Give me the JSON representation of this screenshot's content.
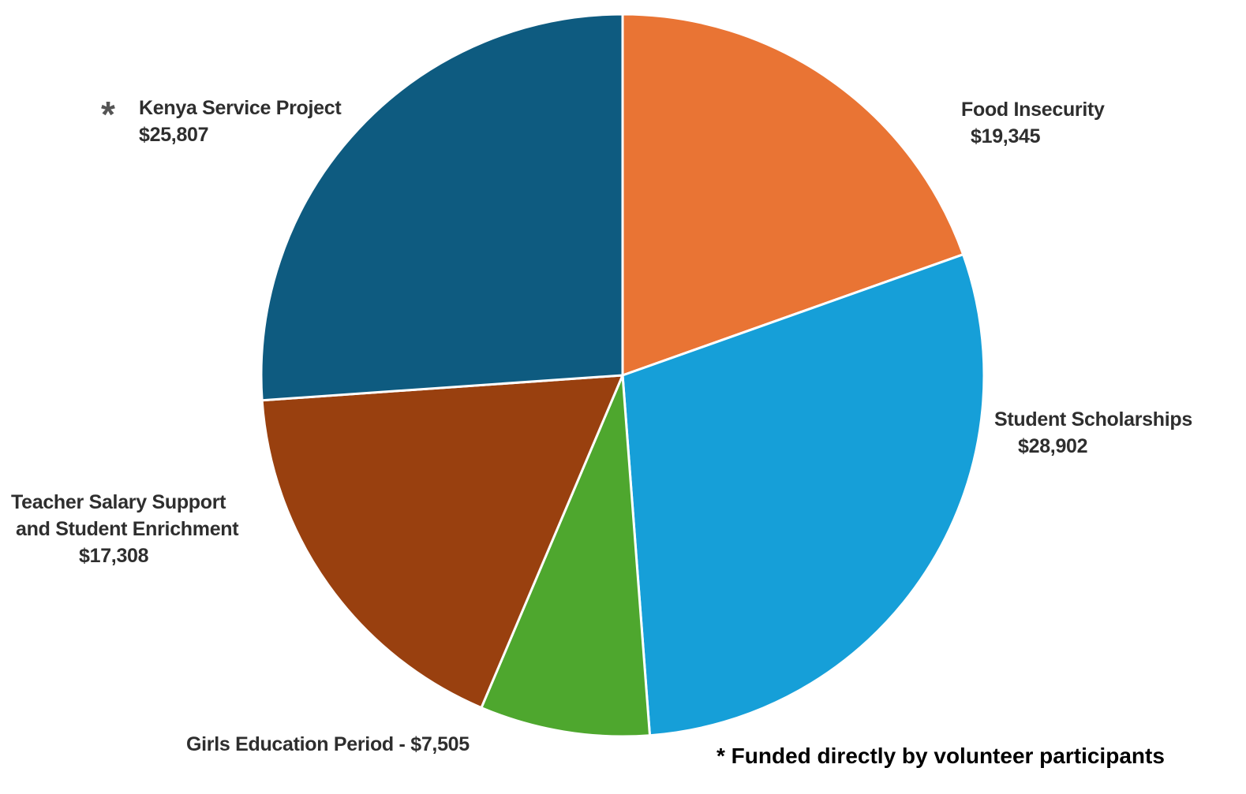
{
  "chart_data": {
    "type": "pie",
    "title": "",
    "slices": [
      {
        "label": "Food Insecurity",
        "value_label": "$19,345",
        "value": 19345,
        "color": "#E97434"
      },
      {
        "label": "Student Scholarships",
        "value_label": "$28,902",
        "value": 28902,
        "color": "#169FD8"
      },
      {
        "label": "Girls Education Period - $7,505",
        "value_label": "",
        "value": 7505,
        "color": "#4EA72E"
      },
      {
        "label": "Teacher Salary Support and Student Enrichment",
        "label_lines": [
          "Teacher Salary Support",
          "and Student Enrichment"
        ],
        "value_label": "$17,308",
        "value": 17308,
        "color": "#99400F"
      },
      {
        "label": "Kenya Service Project",
        "value_label": "$25,807",
        "value": 25807,
        "color": "#0E5B80",
        "marker": "*"
      }
    ],
    "start_angle_deg": 0,
    "direction": "clockwise",
    "slice_separator_color": "#ffffff",
    "legend": "none"
  },
  "footnote": "* Funded directly by volunteer participants"
}
